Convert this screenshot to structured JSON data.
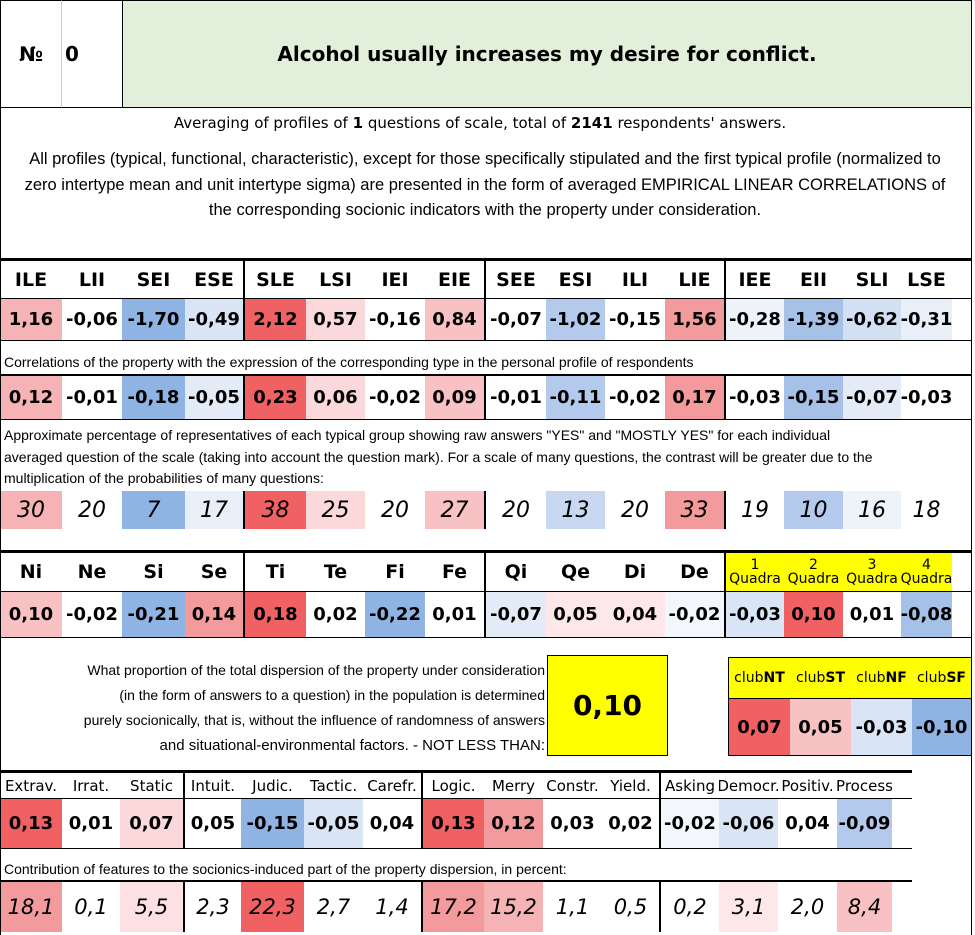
{
  "header": {
    "number_prefix": "№",
    "number": "0",
    "question": "Alcohol usually increases my desire for conflict."
  },
  "averaging": {
    "part1": "Averaging of profiles of ",
    "questions": "1",
    "part2": " questions of scale, total of ",
    "respondents": "2141",
    "part3": " respondents' answers."
  },
  "description": "All profiles (typical, functional, characteristic), except for those specifically stipulated and the first typical profile (normalized to zero intertype mean and unit intertype sigma) are presented in the form of averaged EMPIRICAL LINEAR CORRELATIONS of the corresponding socionic indicators with the property under consideration.",
  "types": {
    "labels": [
      "ILE",
      "LII",
      "SEI",
      "ESE",
      "SLE",
      "LSI",
      "IEI",
      "EIE",
      "SEE",
      "ESI",
      "ILI",
      "LIE",
      "IEE",
      "EII",
      "SLI",
      "LSE"
    ],
    "normalized": [
      "1,16",
      "-0,06",
      "-1,70",
      "-0,49",
      "2,12",
      "0,57",
      "-0,16",
      "0,84",
      "-0,07",
      "-1,02",
      "-0,15",
      "1,56",
      "-0,28",
      "-1,39",
      "-0,62",
      "-0,31"
    ],
    "normalized_colors": [
      "#f5b3b5",
      "#ffffff",
      "#8fb3e3",
      "#d9e5f4",
      "#ef6163",
      "#fbd8d9",
      "#ffffff",
      "#f8c2c4",
      "#ffffff",
      "#b3caec",
      "#ffffff",
      "#f39a9c",
      "#eef3fa",
      "#a6c1e8",
      "#d3e0f3",
      "#e8eff8"
    ],
    "correlation_note": "Correlations of the property with the expression of the corresponding type in the personal profile of respondents",
    "correlations": [
      "0,12",
      "-0,01",
      "-0,18",
      "-0,05",
      "0,23",
      "0,06",
      "-0,02",
      "0,09",
      "-0,01",
      "-0,11",
      "-0,02",
      "0,17",
      "-0,03",
      "-0,15",
      "-0,07",
      "-0,03"
    ],
    "correlation_colors": [
      "#f5b3b5",
      "#ffffff",
      "#8fb3e3",
      "#e3ebf7",
      "#ef6163",
      "#fbd8d9",
      "#ffffff",
      "#f8c2c4",
      "#ffffff",
      "#b3caec",
      "#ffffff",
      "#f39a9c",
      "#ffffff",
      "#a6c1e8",
      "#e3ebf7",
      "#ffffff"
    ],
    "percentage_note_line1": "Approximate percentage of representatives of each typical group showing raw answers \"YES\" and \"MOSTLY YES\" for each individual",
    "percentage_note_line2": "averaged question of the scale (taking into account the question mark). For a scale of many questions, the contrast will be greater due to the",
    "percentage_note_line3": "multiplication of the probabilities of many questions:",
    "percentages": [
      "30",
      "20",
      "7",
      "17",
      "38",
      "25",
      "20",
      "27",
      "20",
      "13",
      "20",
      "33",
      "19",
      "10",
      "16",
      "18"
    ],
    "percentage_colors": [
      "#f5b3b5",
      "#ffffff",
      "#8fb3e3",
      "#e8eff8",
      "#ef6163",
      "#fbd8d9",
      "#ffffff",
      "#f8c2c4",
      "#ffffff",
      "#c9d8f0",
      "#ffffff",
      "#f39a9c",
      "#ffffff",
      "#b3caec",
      "#eef3fa",
      "#ffffff"
    ]
  },
  "functions": {
    "labels": [
      "Ni",
      "Ne",
      "Si",
      "Se",
      "Ti",
      "Te",
      "Fi",
      "Fe",
      "Qi",
      "Qe",
      "Di",
      "De"
    ],
    "values": [
      "0,10",
      "-0,02",
      "-0,21",
      "0,14",
      "0,18",
      "0,02",
      "-0,22",
      "0,01",
      "-0,07",
      "0,05",
      "0,04",
      "-0,02"
    ],
    "colors": [
      "#f8c2c4",
      "#ffffff",
      "#8fb3e3",
      "#f39a9c",
      "#ef6163",
      "#ffffff",
      "#8fb3e3",
      "#ffffff",
      "#e3ebf7",
      "#fde7e8",
      "#fde7e8",
      "#f3f7fc"
    ]
  },
  "quadras": {
    "labels": [
      {
        "num": "1",
        "word": "Quadra"
      },
      {
        "num": "2",
        "word": "Quadra"
      },
      {
        "num": "3",
        "word": "Quadra"
      },
      {
        "num": "4",
        "word": "Quadra"
      }
    ],
    "values": [
      "-0,03",
      "0,10",
      "0,01",
      "-0,08"
    ],
    "colors": [
      "#d9e5f4",
      "#ef6163",
      "#ffffff",
      "#a6c1e8"
    ]
  },
  "dispersion": {
    "line1": "What proportion of the total dispersion of the property under consideration",
    "line2": "(in the form of answers to a question) in the population is determined",
    "line3": "purely socionically, that is, without the influence of randomness of answers",
    "line4": "and situational-environmental factors. - NOT LESS THAN:",
    "value": "0,10"
  },
  "clubs": {
    "labels": [
      {
        "prefix": "club",
        "suffix": "NT"
      },
      {
        "prefix": "club",
        "suffix": "ST"
      },
      {
        "prefix": "club",
        "suffix": "NF"
      },
      {
        "prefix": "club",
        "suffix": "SF"
      }
    ],
    "values": [
      "0,07",
      "0,05",
      "-0,03",
      "-0,10"
    ],
    "colors": [
      "#ef6163",
      "#f8c2c4",
      "#d9e5f4",
      "#8fb3e3"
    ]
  },
  "features": {
    "labels": [
      "Extrav.",
      "Irrat.",
      "Static",
      "Intuit.",
      "Judic.",
      "Tactic.",
      "Carefr.",
      "Logic.",
      "Merry",
      "Constr.",
      "Yield.",
      "Asking",
      "Democr.",
      "Positiv.",
      "Process"
    ],
    "values": [
      "0,13",
      "0,01",
      "0,07",
      "0,05",
      "-0,15",
      "-0,05",
      "0,04",
      "0,13",
      "0,12",
      "0,03",
      "0,02",
      "-0,02",
      "-0,06",
      "0,04",
      "-0,09"
    ],
    "value_colors": [
      "#ef6163",
      "#ffffff",
      "#fbd8d9",
      "#ffffff",
      "#8fb3e3",
      "#d9e5f4",
      "#ffffff",
      "#ef6163",
      "#f39a9c",
      "#ffffff",
      "#ffffff",
      "#f3f7fc",
      "#d9e5f4",
      "#ffffff",
      "#b3caec"
    ],
    "contribution_note": "Contribution of features to the sociоnics-induced part of the property dispersion, in percent:",
    "contributions": [
      "18,1",
      "0,1",
      "5,5",
      "2,3",
      "22,3",
      "2,7",
      "1,4",
      "17,2",
      "15,2",
      "1,1",
      "0,5",
      "0,2",
      "3,1",
      "2,0",
      "8,4"
    ],
    "contribution_colors": [
      "#f39a9c",
      "#ffffff",
      "#fde0e1",
      "#ffffff",
      "#ef6163",
      "#ffffff",
      "#ffffff",
      "#f39a9c",
      "#f5b3b5",
      "#ffffff",
      "#ffffff",
      "#ffffff",
      "#fde7e8",
      "#ffffff",
      "#f8c2c4"
    ]
  }
}
